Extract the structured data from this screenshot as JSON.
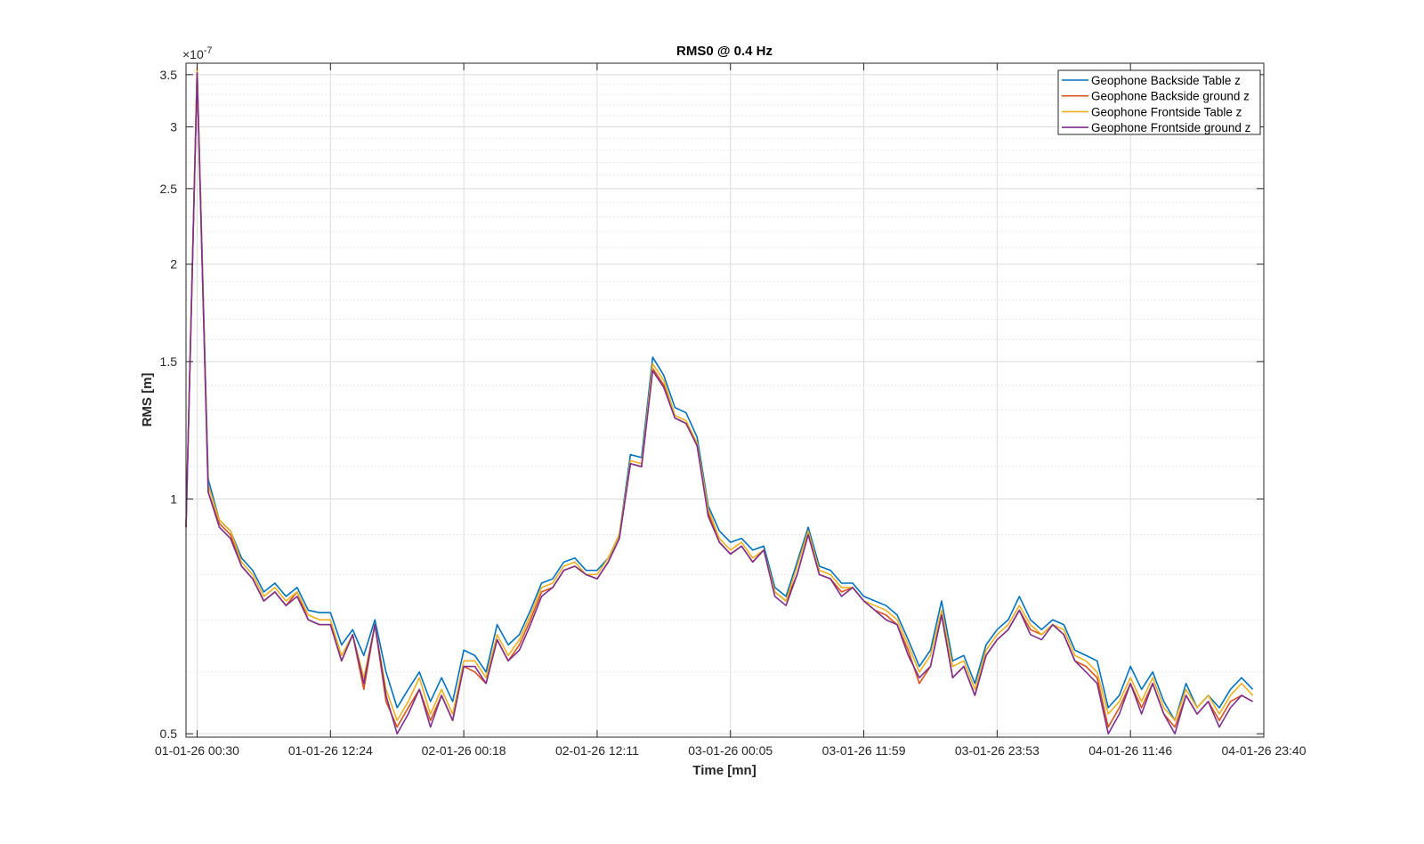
{
  "chart_data": {
    "type": "line",
    "title": "RMS0 @ 0.4 Hz",
    "xlabel": "Time [mn]",
    "ylabel": "RMS [m]",
    "y_exponent_label": "×10",
    "y_exponent_power": "-7",
    "yscale": "log",
    "ylim": [
      0.495,
      3.62
    ],
    "y_ticks": [
      0.5,
      1,
      1.5,
      2,
      2.5,
      3,
      3.5
    ],
    "y_tick_labels": [
      "0.5",
      "1",
      "1.5",
      "2",
      "2.5",
      "3",
      "3.5"
    ],
    "x_ticks": [
      1,
      13,
      25,
      37,
      49,
      61,
      73,
      85,
      97
    ],
    "x_tick_labels": [
      "01-01-26 00:30",
      "01-01-26 12:24",
      "02-01-26 00:18",
      "02-01-26 12:11",
      "03-01-26 00:05",
      "03-01-26 11:59",
      "03-01-26 23:53",
      "04-01-26 11:46",
      "04-01-26 23:40"
    ],
    "xlim": [
      0,
      97
    ],
    "grid": true,
    "legend_location": "top-right",
    "series": [
      {
        "name": "Geophone Backside Table z",
        "color": "#0072BD",
        "values": [
          0.92,
          3.55,
          1.06,
          0.94,
          0.91,
          0.84,
          0.81,
          0.76,
          0.78,
          0.75,
          0.77,
          0.72,
          0.715,
          0.715,
          0.65,
          0.68,
          0.63,
          0.7,
          0.6,
          0.54,
          0.57,
          0.6,
          0.55,
          0.59,
          0.55,
          0.64,
          0.63,
          0.6,
          0.69,
          0.65,
          0.67,
          0.72,
          0.78,
          0.79,
          0.83,
          0.84,
          0.81,
          0.81,
          0.84,
          0.9,
          1.14,
          1.13,
          1.52,
          1.44,
          1.31,
          1.29,
          1.2,
          0.98,
          0.91,
          0.88,
          0.89,
          0.86,
          0.87,
          0.77,
          0.75,
          0.83,
          0.92,
          0.82,
          0.81,
          0.78,
          0.78,
          0.75,
          0.74,
          0.73,
          0.71,
          0.66,
          0.61,
          0.64,
          0.74,
          0.62,
          0.63,
          0.58,
          0.65,
          0.68,
          0.7,
          0.75,
          0.7,
          0.68,
          0.7,
          0.69,
          0.64,
          0.63,
          0.62,
          0.54,
          0.56,
          0.61,
          0.57,
          0.6,
          0.55,
          0.52,
          0.58,
          0.54,
          0.56,
          0.54,
          0.57,
          0.59,
          0.57
        ]
      },
      {
        "name": "Geophone Backside ground z",
        "color": "#D95319",
        "values": [
          0.92,
          3.5,
          1.02,
          0.93,
          0.9,
          0.82,
          0.79,
          0.74,
          0.76,
          0.73,
          0.76,
          0.7,
          0.69,
          0.69,
          0.62,
          0.67,
          0.57,
          0.69,
          0.55,
          0.51,
          0.54,
          0.57,
          0.52,
          0.56,
          0.52,
          0.61,
          0.6,
          0.58,
          0.66,
          0.62,
          0.65,
          0.7,
          0.76,
          0.77,
          0.81,
          0.82,
          0.8,
          0.79,
          0.83,
          0.89,
          1.11,
          1.1,
          1.47,
          1.4,
          1.27,
          1.25,
          1.17,
          0.96,
          0.88,
          0.85,
          0.87,
          0.83,
          0.86,
          0.76,
          0.74,
          0.8,
          0.9,
          0.8,
          0.79,
          0.76,
          0.77,
          0.74,
          0.72,
          0.71,
          0.69,
          0.64,
          0.58,
          0.61,
          0.71,
          0.59,
          0.61,
          0.56,
          0.63,
          0.66,
          0.68,
          0.72,
          0.68,
          0.67,
          0.69,
          0.67,
          0.62,
          0.61,
          0.59,
          0.51,
          0.54,
          0.58,
          0.54,
          0.58,
          0.53,
          0.51,
          0.56,
          0.53,
          0.55,
          0.52,
          0.55,
          0.56,
          0.55
        ]
      },
      {
        "name": "Geophone Frontside Table z",
        "color": "#EDB120",
        "values": [
          0.92,
          3.58,
          1.04,
          0.94,
          0.91,
          0.83,
          0.8,
          0.75,
          0.77,
          0.74,
          0.76,
          0.71,
          0.7,
          0.7,
          0.63,
          0.67,
          0.59,
          0.69,
          0.57,
          0.52,
          0.55,
          0.59,
          0.53,
          0.57,
          0.53,
          0.62,
          0.62,
          0.59,
          0.67,
          0.63,
          0.66,
          0.71,
          0.77,
          0.78,
          0.82,
          0.83,
          0.8,
          0.8,
          0.84,
          0.9,
          1.12,
          1.11,
          1.49,
          1.42,
          1.28,
          1.26,
          1.18,
          0.97,
          0.89,
          0.86,
          0.88,
          0.84,
          0.86,
          0.76,
          0.74,
          0.82,
          0.91,
          0.81,
          0.8,
          0.77,
          0.77,
          0.74,
          0.73,
          0.72,
          0.7,
          0.65,
          0.6,
          0.63,
          0.72,
          0.61,
          0.62,
          0.57,
          0.64,
          0.67,
          0.69,
          0.73,
          0.69,
          0.67,
          0.69,
          0.68,
          0.63,
          0.62,
          0.6,
          0.53,
          0.55,
          0.59,
          0.55,
          0.59,
          0.54,
          0.52,
          0.57,
          0.54,
          0.56,
          0.53,
          0.56,
          0.58,
          0.56
        ]
      },
      {
        "name": "Geophone Frontside ground z",
        "color": "#7E2F8E",
        "values": [
          0.92,
          3.52,
          1.02,
          0.92,
          0.89,
          0.82,
          0.79,
          0.74,
          0.76,
          0.73,
          0.75,
          0.7,
          0.69,
          0.69,
          0.62,
          0.67,
          0.58,
          0.69,
          0.56,
          0.5,
          0.53,
          0.57,
          0.51,
          0.56,
          0.52,
          0.61,
          0.61,
          0.58,
          0.66,
          0.62,
          0.64,
          0.69,
          0.75,
          0.77,
          0.81,
          0.82,
          0.8,
          0.79,
          0.83,
          0.89,
          1.11,
          1.1,
          1.46,
          1.39,
          1.27,
          1.25,
          1.17,
          0.95,
          0.88,
          0.85,
          0.87,
          0.83,
          0.86,
          0.75,
          0.73,
          0.8,
          0.9,
          0.8,
          0.79,
          0.75,
          0.77,
          0.74,
          0.72,
          0.7,
          0.69,
          0.63,
          0.59,
          0.61,
          0.71,
          0.59,
          0.61,
          0.56,
          0.63,
          0.66,
          0.68,
          0.72,
          0.67,
          0.66,
          0.69,
          0.67,
          0.62,
          0.6,
          0.58,
          0.5,
          0.53,
          0.58,
          0.53,
          0.58,
          0.53,
          0.5,
          0.56,
          0.53,
          0.55,
          0.51,
          0.54,
          0.56,
          0.55
        ]
      }
    ]
  }
}
